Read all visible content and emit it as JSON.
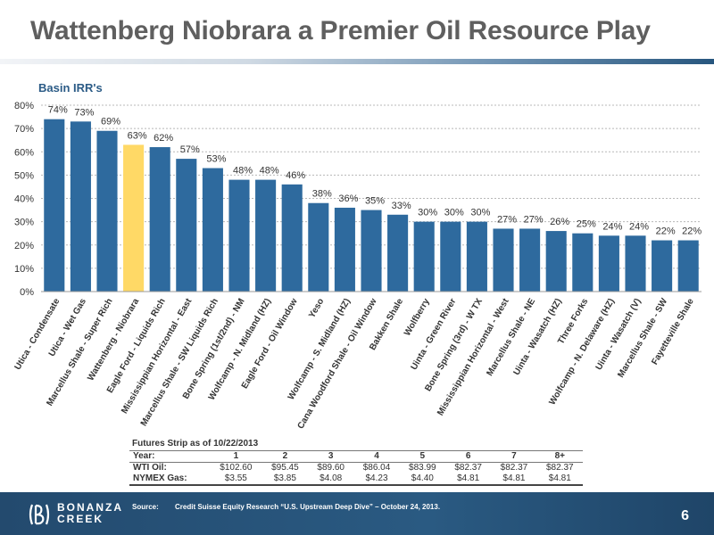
{
  "slide": {
    "title": "Wattenberg Niobrara a Premier Oil Resource Play",
    "page_number": "6"
  },
  "colors": {
    "bar": "#2e6a9e",
    "highlight": "#ffd966",
    "title_text": "#5f5f5f",
    "footer": "#2a5a82"
  },
  "chart_data": {
    "type": "bar",
    "title": "Basin IRR's",
    "xlabel": "",
    "ylabel": "",
    "ylim": [
      0,
      80
    ],
    "yticks": [
      0,
      10,
      20,
      30,
      40,
      50,
      60,
      70,
      80
    ],
    "ytick_labels": [
      "0%",
      "10%",
      "20%",
      "30%",
      "40%",
      "50%",
      "60%",
      "70%",
      "80%"
    ],
    "grid": "horizontal dotted",
    "highlight_category": "Wattenberg - Niobrara",
    "categories": [
      "Utica - Condensate",
      "Utica - Wet Gas",
      "Marcellus Shale - Super Rich",
      "Wattenberg - Niobrara",
      "Eagle Ford - Liquids Rich",
      "Mississippian Horizontal - East",
      "Marcellus Shale - SW Liquids Rich",
      "Bone Spring (1st/2nd) - NM",
      "Wolfcamp - N. Midland (HZ)",
      "Eagle Ford - Oil Window",
      "Yeso",
      "Wolfcamp - S. Midland (HZ)",
      "Cana Woodford Shale - Oil Window",
      "Bakken Shale",
      "Wolfberry",
      "Uinta - Green River",
      "Bone Spring (3rd) - W TX",
      "Mississippian Horizontal - West",
      "Marcellus Shale - NE",
      "Uinta - Wasatch (HZ)",
      "Three Forks",
      "Wolfcamp - N. Delaware (HZ)",
      "Uinta - Wasatch (V)",
      "Marcellus Shale - SW",
      "Fayetteville Shale"
    ],
    "values": [
      74,
      73,
      69,
      63,
      62,
      57,
      53,
      48,
      48,
      46,
      38,
      36,
      35,
      33,
      30,
      30,
      30,
      27,
      27,
      26,
      25,
      24,
      24,
      22,
      22
    ],
    "value_labels": [
      "74%",
      "73%",
      "69%",
      "63%",
      "62%",
      "57%",
      "53%",
      "48%",
      "48%",
      "46%",
      "38%",
      "36%",
      "35%",
      "33%",
      "30%",
      "30%",
      "30%",
      "27%",
      "27%",
      "26%",
      "25%",
      "24%",
      "24%",
      "22%",
      "22%"
    ]
  },
  "futures": {
    "title": "Futures Strip as of 10/22/2013",
    "year_label": "Year:",
    "years": [
      "1",
      "2",
      "3",
      "4",
      "5",
      "6",
      "7",
      "8+"
    ],
    "wti_label": "WTI Oil:",
    "wti": [
      "$102.60",
      "$95.45",
      "$89.60",
      "$86.04",
      "$83.99",
      "$82.37",
      "$82.37",
      "$82.37"
    ],
    "gas_label": "NYMEX Gas:",
    "gas": [
      "$3.55",
      "$3.85",
      "$4.08",
      "$4.23",
      "$4.40",
      "$4.81",
      "$4.81",
      "$4.81"
    ]
  },
  "footer": {
    "logo_line1": "BONANZA",
    "logo_line2": "CREEK",
    "source_label": "Source:",
    "source_text": "Credit Suisse Equity Research “U.S. Upstream Deep Dive” – October 24, 2013."
  }
}
